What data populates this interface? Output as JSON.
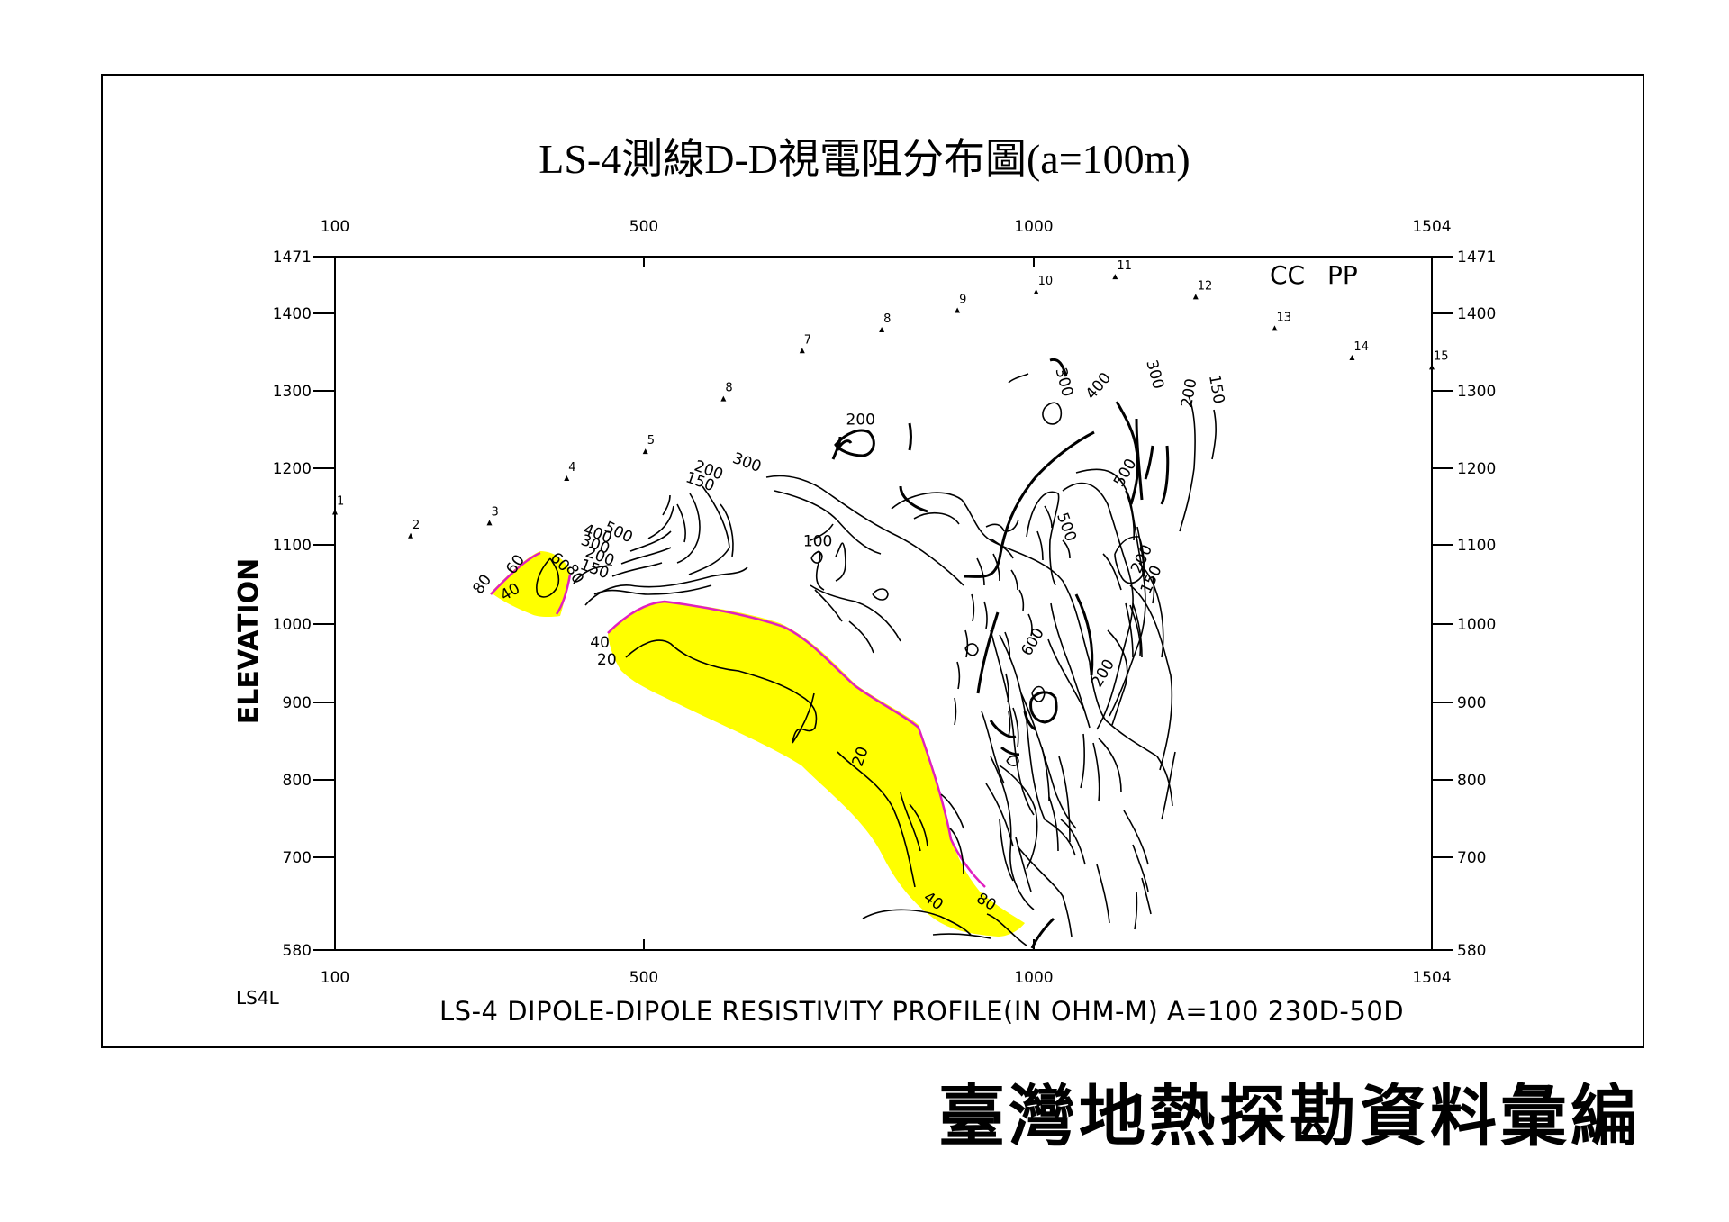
{
  "title": "LS-4測線D-D視電阻分布圖(a=100m)",
  "footer": "臺灣地熱探勘資料彙編",
  "profile_id": "LS4L",
  "colors": {
    "anomaly_fill": "#ffff00",
    "anomaly_edge": "#e020c0",
    "line": "#000000"
  },
  "chart_data": {
    "type": "contour",
    "title": "LS-4 DIPOLE-DIPOLE RESISTIVITY PROFILE(IN OHM-M) A=100 230D-50D",
    "xlabel": "",
    "ylabel": "ELEVATION",
    "xlim": [
      100,
      1504
    ],
    "ylim": [
      580,
      1471
    ],
    "x_ticks": [
      100,
      500,
      1000,
      1504
    ],
    "x_tick_labels": [
      "100",
      "500",
      "1000",
      "1504"
    ],
    "y_ticks": [
      580,
      700,
      800,
      900,
      1000,
      1100,
      1200,
      1300,
      1400,
      1471
    ],
    "y_tick_labels": [
      "580",
      "700",
      "800",
      "900",
      "1000",
      "1100",
      "1200",
      "1300",
      "1400",
      "1471"
    ],
    "corner_labels": [
      "CC",
      "PP"
    ],
    "stations": [
      {
        "label": "1",
        "x": 100,
        "y": 1143
      },
      {
        "label": "2",
        "x": 198,
        "y": 1112
      },
      {
        "label": "3",
        "x": 300,
        "y": 1129
      },
      {
        "label": "4",
        "x": 400,
        "y": 1187
      },
      {
        "label": "5",
        "x": 502,
        "y": 1222
      },
      {
        "label": "8",
        "x": 602,
        "y": 1290
      },
      {
        "label": "7",
        "x": 703,
        "y": 1352
      },
      {
        "label": "8",
        "x": 805,
        "y": 1379
      },
      {
        "label": "9",
        "x": 902,
        "y": 1404
      },
      {
        "label": "10",
        "x": 1003,
        "y": 1427
      },
      {
        "label": "11",
        "x": 1103,
        "y": 1446
      },
      {
        "label": "12",
        "x": 1205,
        "y": 1421
      },
      {
        "label": "13",
        "x": 1305,
        "y": 1381
      },
      {
        "label": "14",
        "x": 1403,
        "y": 1343
      },
      {
        "label": "15",
        "x": 1505,
        "y": 1331
      }
    ],
    "contour_labels": [
      {
        "text": "80",
        "x": 291,
        "y": 1050,
        "rot": -55
      },
      {
        "text": "60",
        "x": 334,
        "y": 1075,
        "rot": -55
      },
      {
        "text": "40",
        "x": 327,
        "y": 1040,
        "rot": -30
      },
      {
        "text": "60",
        "x": 391,
        "y": 1078,
        "rot": 45
      },
      {
        "text": "80",
        "x": 410,
        "y": 1063,
        "rot": 60
      },
      {
        "text": "150",
        "x": 436,
        "y": 1069,
        "rot": 20
      },
      {
        "text": "200",
        "x": 443,
        "y": 1085,
        "rot": 20
      },
      {
        "text": "300",
        "x": 437,
        "y": 1100,
        "rot": 20
      },
      {
        "text": "400",
        "x": 440,
        "y": 1114,
        "rot": 20
      },
      {
        "text": "500",
        "x": 467,
        "y": 1116,
        "rot": 25
      },
      {
        "text": "150",
        "x": 572,
        "y": 1182,
        "rot": 20
      },
      {
        "text": "200",
        "x": 583,
        "y": 1197,
        "rot": 20
      },
      {
        "text": "300",
        "x": 632,
        "y": 1207,
        "rot": 20
      },
      {
        "text": "200",
        "x": 778,
        "y": 1262,
        "rot": 0
      },
      {
        "text": "100",
        "x": 723,
        "y": 1104,
        "rot": 0
      },
      {
        "text": "300",
        "x": 1038,
        "y": 1311,
        "rot": 75
      },
      {
        "text": "400",
        "x": 1082,
        "y": 1306,
        "rot": -50
      },
      {
        "text": "300",
        "x": 1153,
        "y": 1321,
        "rot": 75
      },
      {
        "text": "200",
        "x": 1197,
        "y": 1297,
        "rot": -80
      },
      {
        "text": "150",
        "x": 1231,
        "y": 1302,
        "rot": 80
      },
      {
        "text": "500",
        "x": 1116,
        "y": 1194,
        "rot": -60
      },
      {
        "text": "500",
        "x": 1041,
        "y": 1123,
        "rot": 70
      },
      {
        "text": "200",
        "x": 1137,
        "y": 1082,
        "rot": -65
      },
      {
        "text": "150",
        "x": 1149,
        "y": 1056,
        "rot": -65
      },
      {
        "text": "600",
        "x": 999,
        "y": 977,
        "rot": -60
      },
      {
        "text": "200",
        "x": 1088,
        "y": 937,
        "rot": -60
      },
      {
        "text": "40",
        "x": 443,
        "y": 976,
        "rot": 0
      },
      {
        "text": "20",
        "x": 452,
        "y": 954,
        "rot": 0
      },
      {
        "text": "20",
        "x": 778,
        "y": 830,
        "rot": -70
      },
      {
        "text": "40",
        "x": 871,
        "y": 643,
        "rot": 35
      },
      {
        "text": "80",
        "x": 939,
        "y": 642,
        "rot": 30
      }
    ]
  }
}
